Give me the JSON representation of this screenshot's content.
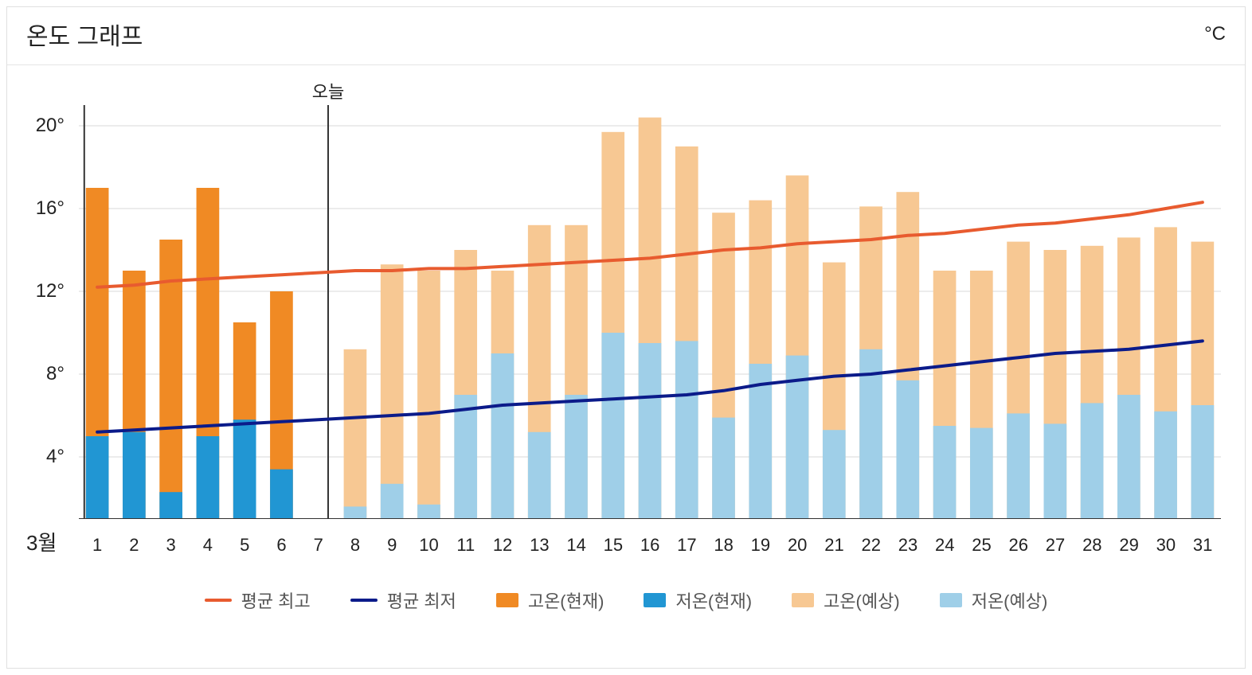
{
  "chart": {
    "title": "온도 그래프",
    "unit": "°C",
    "type": "bar+line",
    "month_label": "3월",
    "today_label": "오늘",
    "today_index": 7,
    "background_color": "#ffffff",
    "grid_color": "#d8d8d8",
    "axis_color": "#333333",
    "ylim": [
      1,
      21
    ],
    "yticks": [
      4,
      8,
      12,
      16,
      20
    ],
    "ytick_labels": [
      "4°",
      "8°",
      "12°",
      "16°",
      "20°"
    ],
    "days": [
      1,
      2,
      3,
      4,
      5,
      6,
      7,
      8,
      9,
      10,
      11,
      12,
      13,
      14,
      15,
      16,
      17,
      18,
      19,
      20,
      21,
      22,
      23,
      24,
      25,
      26,
      27,
      28,
      29,
      30,
      31
    ],
    "bars": {
      "bar_width_ratio": 0.62,
      "high_current_color": "#f08a24",
      "low_current_color": "#2196d3",
      "high_forecast_color": "#f7c893",
      "low_forecast_color": "#9fcfe8",
      "high_current": [
        17.0,
        13.0,
        14.5,
        17.0,
        10.5,
        12.0,
        null,
        null,
        null,
        null,
        null,
        null,
        null,
        null,
        null,
        null,
        null,
        null,
        null,
        null,
        null,
        null,
        null,
        null,
        null,
        null,
        null,
        null,
        null,
        null,
        null
      ],
      "low_current": [
        5.0,
        5.2,
        2.3,
        5.0,
        5.8,
        3.4,
        null,
        null,
        null,
        null,
        null,
        null,
        null,
        null,
        null,
        null,
        null,
        null,
        null,
        null,
        null,
        null,
        null,
        null,
        null,
        null,
        null,
        null,
        null,
        null,
        null
      ],
      "high_forecast": [
        null,
        null,
        null,
        null,
        null,
        null,
        null,
        9.2,
        13.3,
        13.0,
        14.0,
        13.0,
        15.2,
        15.2,
        19.7,
        20.4,
        19.0,
        15.8,
        16.4,
        17.6,
        13.4,
        16.1,
        16.8,
        13.0,
        13.0,
        14.4,
        14.0,
        14.2,
        14.6,
        15.1,
        14.4
      ],
      "low_forecast": [
        null,
        null,
        null,
        null,
        null,
        null,
        null,
        1.6,
        2.7,
        1.7,
        7.0,
        9.0,
        5.2,
        7.0,
        10.0,
        9.5,
        9.6,
        5.9,
        8.5,
        8.9,
        5.3,
        9.2,
        7.7,
        5.5,
        5.4,
        6.1,
        5.6,
        6.6,
        7.0,
        6.2,
        6.5
      ]
    },
    "lines": {
      "avg_high_color": "#e85b2f",
      "avg_low_color": "#0b1b8a",
      "line_width": 4,
      "avg_high": [
        12.2,
        12.3,
        12.5,
        12.6,
        12.7,
        12.8,
        12.9,
        13.0,
        13.0,
        13.1,
        13.1,
        13.2,
        13.3,
        13.4,
        13.5,
        13.6,
        13.8,
        14.0,
        14.1,
        14.3,
        14.4,
        14.5,
        14.7,
        14.8,
        15.0,
        15.2,
        15.3,
        15.5,
        15.7,
        16.0,
        16.3
      ],
      "avg_low": [
        5.2,
        5.3,
        5.4,
        5.5,
        5.6,
        5.7,
        5.8,
        5.9,
        6.0,
        6.1,
        6.3,
        6.5,
        6.6,
        6.7,
        6.8,
        6.9,
        7.0,
        7.2,
        7.5,
        7.7,
        7.9,
        8.0,
        8.2,
        8.4,
        8.6,
        8.8,
        9.0,
        9.1,
        9.2,
        9.4,
        9.6
      ]
    },
    "legend": {
      "avg_high": "평균 최고",
      "avg_low": "평균 최저",
      "high_current": "고온(현재)",
      "low_current": "저온(현재)",
      "high_forecast": "고온(예상)",
      "low_forecast": "저온(예상)"
    }
  }
}
